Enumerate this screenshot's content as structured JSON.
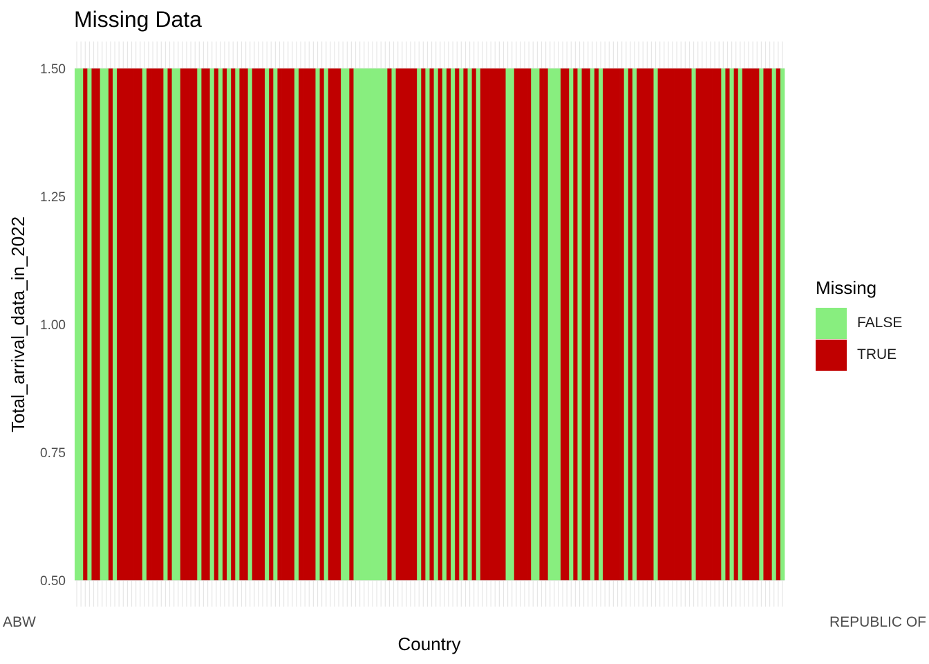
{
  "chart_data": {
    "type": "heatmap",
    "title": "Missing Data",
    "xlabel": "Country",
    "ylabel": "Total_arrival_data_in_2022",
    "ylim": [
      0.5,
      1.5
    ],
    "yticks": [
      "0.50",
      "0.75",
      "1.00",
      "1.25",
      "1.50"
    ],
    "grid": true,
    "legend": {
      "title": "Missing",
      "position": "right",
      "entries": [
        {
          "label": "FALSE",
          "color": "#88EE7F"
        },
        {
          "label": "TRUE",
          "color": "#C00000"
        }
      ]
    },
    "colors": {
      "FALSE": "#88EE7F",
      "TRUE": "#C00000"
    },
    "x_first_label": "ABW",
    "x_last_label": "REPUBLIC OF",
    "missing": [
      false,
      false,
      true,
      false,
      true,
      true,
      false,
      false,
      true,
      false,
      true,
      true,
      true,
      true,
      true,
      true,
      false,
      true,
      true,
      true,
      true,
      false,
      true,
      false,
      false,
      true,
      true,
      true,
      true,
      false,
      true,
      true,
      false,
      true,
      false,
      true,
      false,
      true,
      false,
      true,
      true,
      false,
      true,
      true,
      true,
      false,
      true,
      false,
      true,
      true,
      true,
      true,
      false,
      true,
      true,
      true,
      true,
      false,
      true,
      false,
      true,
      true,
      true,
      false,
      false,
      true,
      false,
      false,
      false,
      false,
      false,
      false,
      false,
      false,
      true,
      false,
      true,
      true,
      true,
      true,
      true,
      false,
      true,
      false,
      true,
      false,
      true,
      false,
      true,
      false,
      true,
      false,
      true,
      false,
      true,
      false,
      true,
      true,
      true,
      true,
      true,
      true,
      false,
      false,
      true,
      true,
      true,
      true,
      false,
      false,
      true,
      true,
      false,
      false,
      false,
      true,
      true,
      false,
      true,
      false,
      true,
      true,
      false,
      true,
      false,
      true,
      true,
      true,
      true,
      true,
      false,
      true,
      false,
      true,
      true,
      true,
      true,
      false,
      true,
      true,
      true,
      true,
      true,
      true,
      true,
      true,
      false,
      true,
      true,
      true,
      true,
      true,
      true,
      false,
      true,
      false,
      true,
      false,
      true,
      true,
      true,
      true,
      false,
      true,
      true,
      false,
      true,
      false
    ]
  }
}
